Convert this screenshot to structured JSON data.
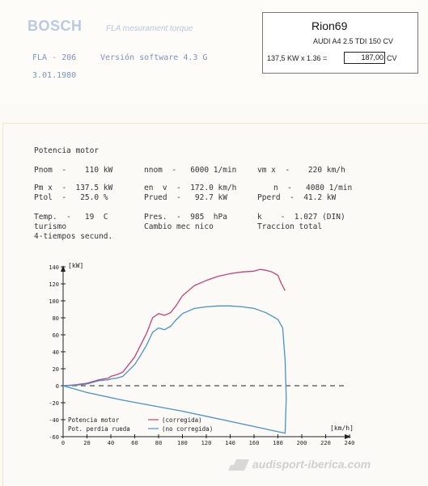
{
  "header": {
    "brand": "BOSCH",
    "subtitle": "FLA mesurament torque",
    "model_code": "FLA - 206",
    "software": "Versión software  4.3 G",
    "date": "3.01.1980"
  },
  "info_box": {
    "name": "Rion69",
    "car": "AUDI A4 2.5 TDI 150 CV",
    "calc": "137,5 KW x 1.36 =",
    "result": "187,00",
    "unit": "CV"
  },
  "report": {
    "title": "Potencia motor",
    "row1": {
      "pnom": "Pnom  -    110 kW",
      "nnom": "nnom  -   6000 1/min",
      "vmax": "vm x  -    220 km/h"
    },
    "row2": {
      "pmax": "Pm x  -  137.5 kW",
      "en": "en  v  -  172.0 km/h",
      "n": "n  -   4080 1/min"
    },
    "row3": {
      "ptol": "Ptol  -   25.0 %",
      "prued": "Prued  -   92.7 kW",
      "pperd": "Pperd  -  41.2 kW"
    },
    "row4": {
      "temp": "Temp.  -   19  C",
      "pres": "Pres.  -  985  hPa",
      "k": "k    -  1.027 (DIN)"
    },
    "row5": {
      "turismo": "turismo",
      "cambio": "Cambio mec nico",
      "traccion": "Traccion total"
    },
    "row6": {
      "tiempos": "4-tiempos secund."
    }
  },
  "chart_data": {
    "type": "line",
    "ylabel": "[kW]",
    "xlabel": "[km/h]",
    "xlim": [
      0,
      240
    ],
    "ylim": [
      -60,
      140
    ],
    "x_ticks": [
      "0",
      "20",
      "40",
      "60",
      "80",
      "100",
      "120",
      "140",
      "160",
      "180",
      "200",
      "220",
      "240"
    ],
    "y_ticks": [
      "140",
      "120",
      "100",
      "80",
      "60",
      "40",
      "20",
      "0",
      "-20",
      "-40",
      "-60"
    ],
    "legend": [
      {
        "label": "Potencia motor",
        "note": "(corregida)",
        "color": "#c8407a"
      },
      {
        "label": "Pot. perdia rueda",
        "note": "(no corregida)",
        "color": "#4a8fd0"
      }
    ],
    "series": [
      {
        "name": "Potencia motor (corregida)",
        "color": "#c8407a",
        "x": [
          0,
          10,
          20,
          25,
          30,
          38,
          40,
          45,
          50,
          60,
          65,
          70,
          75,
          80,
          85,
          90,
          95,
          100,
          110,
          120,
          130,
          140,
          150,
          160,
          165,
          170,
          175,
          180,
          183,
          186
        ],
        "y": [
          0,
          1,
          3,
          5,
          7,
          9,
          11,
          13,
          16,
          34,
          48,
          62,
          80,
          85,
          83,
          86,
          95,
          106,
          118,
          124,
          129,
          132,
          134,
          135,
          137,
          136,
          134,
          130,
          120,
          112
        ]
      },
      {
        "name": "Pot. perdia rueda (no corregida)",
        "color": "#4a8fd0",
        "x": [
          0,
          10,
          20,
          25,
          30,
          38,
          40,
          45,
          50,
          60,
          65,
          70,
          75,
          80,
          85,
          90,
          95,
          100,
          110,
          120,
          130,
          140,
          150,
          160,
          170,
          180,
          184,
          186,
          187,
          186,
          150,
          100,
          50,
          20,
          0
        ],
        "y": [
          0,
          0.5,
          2,
          4,
          6,
          7,
          8,
          9,
          11,
          25,
          36,
          48,
          63,
          68,
          66,
          70,
          78,
          85,
          91,
          93,
          94,
          94,
          93,
          91,
          86,
          78,
          68,
          30,
          -15,
          -56,
          -45,
          -30,
          -17,
          -8,
          0
        ]
      }
    ]
  }
}
